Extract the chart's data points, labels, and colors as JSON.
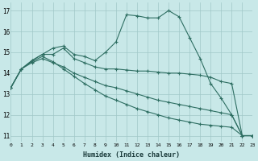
{
  "xlabel": "Humidex (Indice chaleur)",
  "bg_color": "#c8e8e8",
  "line_color": "#2e6e62",
  "marker": "+",
  "xlim": [
    0,
    23
  ],
  "ylim": [
    10.7,
    17.4
  ],
  "yticks": [
    11,
    12,
    13,
    14,
    15,
    16,
    17
  ],
  "xticks": [
    0,
    1,
    2,
    3,
    4,
    5,
    6,
    7,
    8,
    9,
    10,
    11,
    12,
    13,
    14,
    15,
    16,
    17,
    18,
    19,
    20,
    21,
    22,
    23
  ],
  "series": [
    [
      13.3,
      14.2,
      14.6,
      14.9,
      15.2,
      15.3,
      14.9,
      14.8,
      14.6,
      15.0,
      15.5,
      16.8,
      16.75,
      16.65,
      16.65,
      17.0,
      16.7,
      15.7,
      14.7,
      13.5,
      12.8,
      12.0,
      11.0,
      11.0
    ],
    [
      13.3,
      14.2,
      14.6,
      14.9,
      14.9,
      15.2,
      14.7,
      14.5,
      14.3,
      14.2,
      14.2,
      14.15,
      14.1,
      14.1,
      14.05,
      14.0,
      14.0,
      13.95,
      13.9,
      13.8,
      13.6,
      13.5,
      11.0,
      11.0
    ],
    [
      13.3,
      14.2,
      14.5,
      14.7,
      14.5,
      14.3,
      14.0,
      13.8,
      13.6,
      13.4,
      13.3,
      13.15,
      13.0,
      12.85,
      12.7,
      12.6,
      12.5,
      12.4,
      12.3,
      12.2,
      12.1,
      12.0,
      11.0,
      11.0
    ],
    [
      13.3,
      14.2,
      14.55,
      14.8,
      14.55,
      14.2,
      13.85,
      13.5,
      13.2,
      12.9,
      12.7,
      12.5,
      12.3,
      12.15,
      12.0,
      11.85,
      11.75,
      11.65,
      11.55,
      11.5,
      11.45,
      11.4,
      11.0,
      11.0
    ]
  ]
}
